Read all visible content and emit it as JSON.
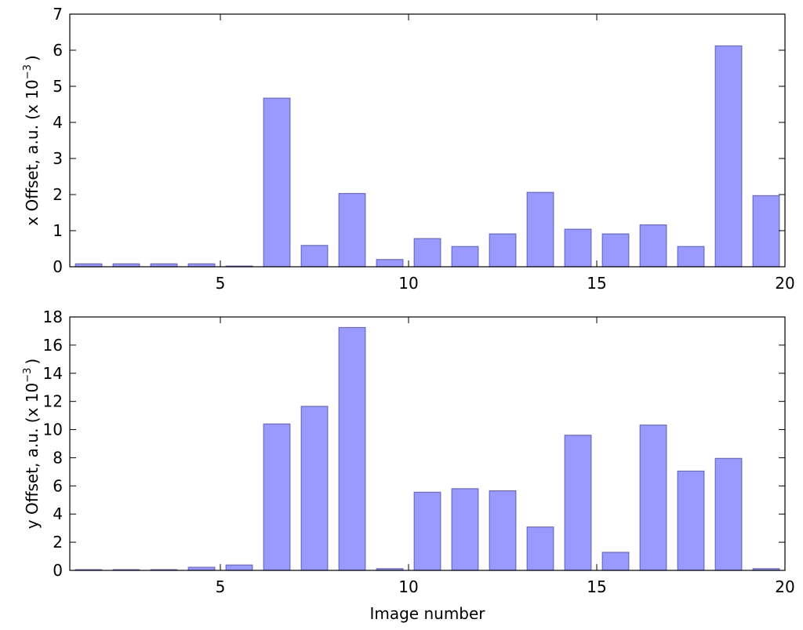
{
  "chart_data": [
    {
      "type": "bar",
      "ylabel": "x Offset, a.u. (x 10",
      "ylabel_exponent": "−3",
      "ylabel_suffix": ")",
      "xlabel": "",
      "x": [
        1.5,
        2.5,
        3.5,
        4.5,
        5.5,
        6.5,
        7.5,
        8.5,
        9.5,
        10.5,
        11.5,
        12.5,
        13.5,
        14.5,
        15.5,
        16.5,
        17.5,
        18.5,
        19.5
      ],
      "values": [
        0.08,
        0.08,
        0.08,
        0.08,
        0.02,
        4.67,
        0.59,
        2.03,
        0.2,
        0.78,
        0.56,
        0.91,
        2.06,
        1.04,
        0.91,
        1.16,
        0.56,
        6.12,
        1.97
      ],
      "bar_width": 0.7,
      "xlim": [
        1,
        20
      ],
      "ylim": [
        0,
        7
      ],
      "xticks": [
        5,
        10,
        15,
        20
      ],
      "yticks": [
        0,
        1,
        2,
        3,
        4,
        5,
        6,
        7
      ],
      "bar_color": "#9999ff",
      "edge_color": "#6b6bb8"
    },
    {
      "type": "bar",
      "ylabel": "y Offset, a.u. (x 10",
      "ylabel_exponent": "−3",
      "ylabel_suffix": ")",
      "xlabel": "Image number",
      "x": [
        1.5,
        2.5,
        3.5,
        4.5,
        5.5,
        6.5,
        7.5,
        8.5,
        9.5,
        10.5,
        11.5,
        12.5,
        13.5,
        14.5,
        15.5,
        16.5,
        17.5,
        18.5,
        19.5
      ],
      "values": [
        0.05,
        0.05,
        0.05,
        0.22,
        0.38,
        10.4,
        11.65,
        17.25,
        0.12,
        5.55,
        5.8,
        5.65,
        3.08,
        9.6,
        1.28,
        10.32,
        7.05,
        7.95,
        0.12
      ],
      "bar_width": 0.7,
      "xlim": [
        1,
        20
      ],
      "ylim": [
        0,
        18
      ],
      "xticks": [
        5,
        10,
        15,
        20
      ],
      "yticks": [
        0,
        2,
        4,
        6,
        8,
        10,
        12,
        14,
        16,
        18
      ],
      "bar_color": "#9999ff",
      "edge_color": "#6b6bb8"
    }
  ]
}
